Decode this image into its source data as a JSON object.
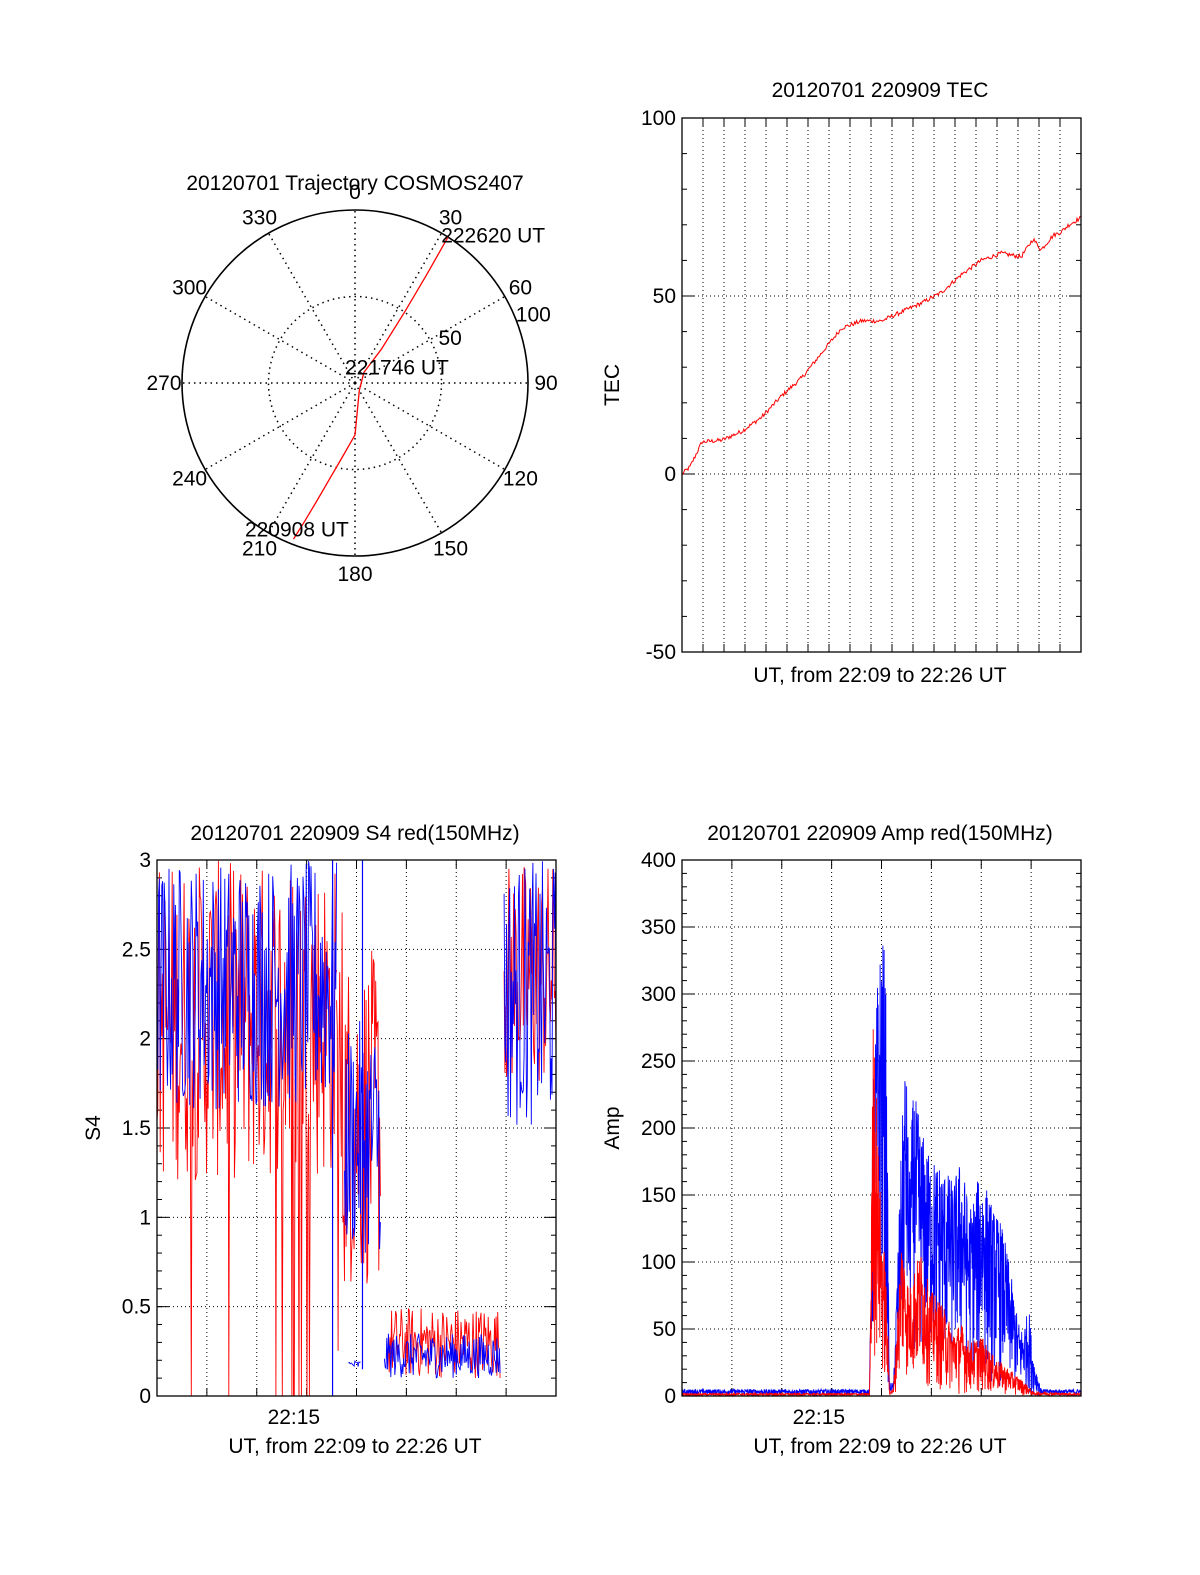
{
  "colors": {
    "red": "#ff0000",
    "blue": "#0000ff",
    "axis": "#000000",
    "grid": "#000000"
  },
  "chart_data": [
    {
      "id": "trajectory",
      "type": "polar",
      "title": "20120701 Trajectory COSMOS2407",
      "azimuth_labels": [
        "0",
        "30",
        "60",
        "90",
        "120",
        "150",
        "180",
        "210",
        "240",
        "270",
        "300",
        "330"
      ],
      "azimuth_angles": [
        0,
        30,
        60,
        90,
        120,
        150,
        180,
        210,
        240,
        270,
        300,
        330
      ],
      "radial_labels": [
        "50",
        "100"
      ],
      "radial_values": [
        50,
        100
      ],
      "rmax": 100,
      "series": [
        {
          "color": "red",
          "az": [
            201.5,
            200,
            198,
            195,
            190,
            180,
            150,
            40,
            38,
            35,
            33.5,
            32.5
          ],
          "r": [
            97,
            85,
            72,
            58,
            44,
            30,
            5,
            8,
            25,
            50,
            75,
            100
          ]
        }
      ],
      "point_labels": [
        {
          "text": "222620 UT",
          "az": 28,
          "r": 100
        },
        {
          "text": "221746 UT",
          "az": 60,
          "r": 10
        },
        {
          "text": "220908 UT",
          "az": 196,
          "r": 84
        }
      ]
    },
    {
      "id": "tec",
      "type": "line",
      "title": "20120701 220909 TEC",
      "xlabel": "UT, from 22:09 to 22:26 UT",
      "ylabel": "TEC",
      "xlim": [
        0,
        1
      ],
      "ylim": [
        -50,
        100
      ],
      "yticks": [
        -50,
        0,
        50,
        100
      ],
      "ytick_labels": [
        "-50",
        "0",
        "50",
        "100"
      ],
      "x_gridlines": 19,
      "series": [
        {
          "color": "red",
          "x": [
            0,
            0.02,
            0.05,
            0.1,
            0.15,
            0.2,
            0.25,
            0.3,
            0.35,
            0.4,
            0.45,
            0.5,
            0.55,
            0.6,
            0.65,
            0.7,
            0.75,
            0.8,
            0.85,
            0.88,
            0.9,
            0.93,
            0.95,
            0.97,
            1.0
          ],
          "y": [
            0,
            2,
            9,
            9.5,
            12,
            16,
            22,
            27,
            34,
            41,
            43,
            43,
            45.5,
            48,
            51,
            56,
            60,
            62,
            61,
            66,
            63,
            67,
            68,
            70,
            72
          ]
        }
      ]
    },
    {
      "id": "s4",
      "type": "line",
      "title": "20120701 220909 S4 red(150MHz)",
      "xlabel": "UT, from 22:09 to 22:26 UT",
      "ylabel": "S4",
      "xlim": [
        0,
        1
      ],
      "ylim": [
        0,
        3
      ],
      "yticks": [
        0,
        0.5,
        1,
        1.5,
        2,
        2.5,
        3
      ],
      "ytick_labels": [
        "0",
        "0.5",
        "1",
        "1.5",
        "2",
        "2.5",
        "3"
      ],
      "xtick_labels": [
        "22:15"
      ],
      "xtick_values": [
        0.343
      ],
      "x_gridlines": 8,
      "series": [
        {
          "color": "red",
          "segments": [
            {
              "x0": 0.0,
              "x1": 0.45,
              "low": 1.2,
              "high": 3.0,
              "drops_to": 0.0,
              "drop_count": 14
            },
            {
              "x0": 0.45,
              "x1": 0.47,
              "low": 0.2,
              "high": 2.9
            },
            {
              "x0": 0.47,
              "x1": 0.56,
              "low": 0.6,
              "high": 2.5
            },
            {
              "x0": 0.58,
              "x1": 0.86,
              "low": 0.1,
              "high": 0.5
            },
            {
              "x0": 0.87,
              "x1": 1.0,
              "low": 1.7,
              "high": 3.0
            }
          ]
        },
        {
          "color": "blue",
          "segments": [
            {
              "x0": 0.0,
              "x1": 0.45,
              "low": 1.6,
              "high": 3.0
            },
            {
              "x0": 0.47,
              "x1": 0.56,
              "low": 0.8,
              "high": 2.1
            },
            {
              "x0": 0.48,
              "x1": 0.51,
              "low": 0.15,
              "high": 0.2
            },
            {
              "x0": 0.57,
              "x1": 0.86,
              "low": 0.1,
              "high": 0.35
            },
            {
              "x0": 0.87,
              "x1": 1.0,
              "low": 1.5,
              "high": 3.0
            }
          ]
        }
      ]
    },
    {
      "id": "amp",
      "type": "line",
      "title": "20120701 220909 Amp red(150MHz)",
      "xlabel": "UT, from 22:09 to 22:26 UT",
      "ylabel": "Amp",
      "xlim": [
        0,
        1
      ],
      "ylim": [
        0,
        400
      ],
      "yticks": [
        0,
        50,
        100,
        150,
        200,
        250,
        300,
        350,
        400
      ],
      "ytick_labels": [
        "0",
        "50",
        "100",
        "150",
        "200",
        "250",
        "300",
        "350",
        "400"
      ],
      "xtick_labels": [
        "22:15"
      ],
      "xtick_values": [
        0.343
      ],
      "x_gridlines": 8,
      "series": [
        {
          "color": "blue",
          "envelope_x": [
            0.0,
            0.47,
            0.48,
            0.49,
            0.5,
            0.51,
            0.52,
            0.53,
            0.55,
            0.56,
            0.57,
            0.58,
            0.6,
            0.62,
            0.65,
            0.68,
            0.7,
            0.72,
            0.75,
            0.78,
            0.8,
            0.82,
            0.84,
            0.85,
            0.87,
            0.88,
            0.9,
            1.0
          ],
          "envelope_high": [
            5,
            5,
            250,
            310,
            350,
            330,
            10,
            10,
            190,
            260,
            170,
            230,
            200,
            180,
            175,
            160,
            180,
            140,
            170,
            140,
            130,
            100,
            60,
            50,
            65,
            30,
            5,
            5
          ],
          "envelope_low": [
            0,
            0,
            20,
            40,
            30,
            10,
            0,
            0,
            20,
            40,
            30,
            30,
            20,
            20,
            10,
            20,
            10,
            10,
            10,
            5,
            0,
            0,
            0,
            0,
            0,
            0,
            0,
            0
          ]
        },
        {
          "color": "red",
          "envelope_x": [
            0.0,
            0.47,
            0.48,
            0.49,
            0.5,
            0.51,
            0.52,
            0.53,
            0.55,
            0.56,
            0.57,
            0.58,
            0.6,
            0.62,
            0.65,
            0.68,
            0.7,
            0.72,
            0.75,
            0.78,
            0.8,
            0.82,
            0.84,
            0.86,
            0.88,
            1.0
          ],
          "envelope_high": [
            2,
            2,
            310,
            200,
            130,
            100,
            5,
            5,
            120,
            100,
            80,
            95,
            110,
            80,
            70,
            50,
            55,
            40,
            45,
            30,
            25,
            20,
            15,
            10,
            3,
            2
          ],
          "envelope_low": [
            0,
            0,
            10,
            10,
            5,
            0,
            0,
            0,
            10,
            10,
            5,
            5,
            5,
            5,
            0,
            0,
            0,
            0,
            0,
            0,
            0,
            0,
            0,
            0,
            0,
            0
          ]
        }
      ]
    }
  ]
}
